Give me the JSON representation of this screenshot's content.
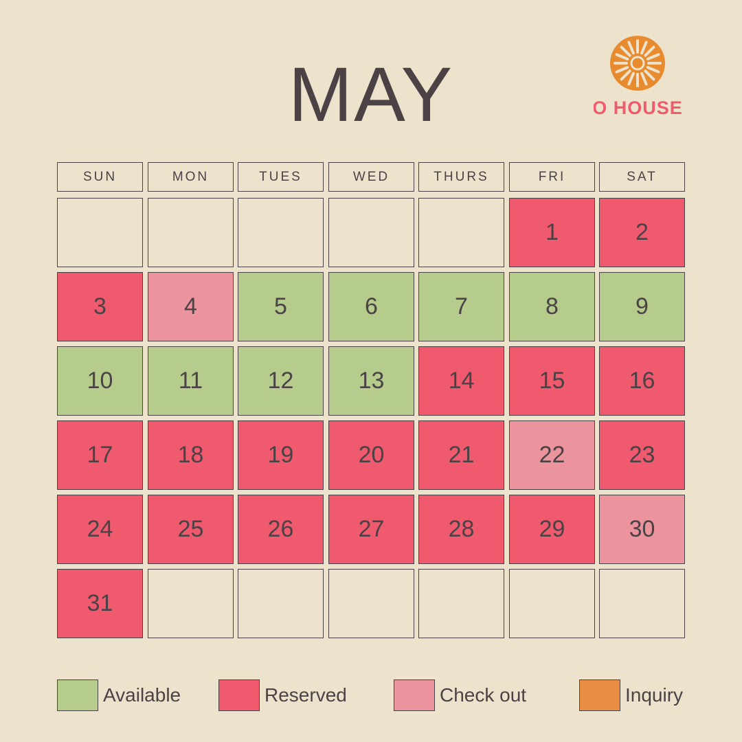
{
  "month": "MAY",
  "brand": {
    "logo_text": "O HOUSE",
    "colors": {
      "sun": "#e88a2e",
      "text": "#ef5a6e"
    }
  },
  "weekdays": [
    "SUN",
    "MON",
    "TUES",
    "WED",
    "THURS",
    "FRI",
    "SAT"
  ],
  "statuses": {
    "available": "#b6cc8d",
    "reserved": "#ef5a6e",
    "checkout": "#ec949d",
    "inquiry": "#e88e44",
    "empty": "#ede3cc"
  },
  "weeks": [
    [
      {
        "day": "",
        "status": "empty"
      },
      {
        "day": "",
        "status": "empty"
      },
      {
        "day": "",
        "status": "empty"
      },
      {
        "day": "",
        "status": "empty"
      },
      {
        "day": "",
        "status": "empty"
      },
      {
        "day": "1",
        "status": "reserved"
      },
      {
        "day": "2",
        "status": "reserved"
      }
    ],
    [
      {
        "day": "3",
        "status": "reserved"
      },
      {
        "day": "4",
        "status": "checkout"
      },
      {
        "day": "5",
        "status": "available"
      },
      {
        "day": "6",
        "status": "available"
      },
      {
        "day": "7",
        "status": "available"
      },
      {
        "day": "8",
        "status": "available"
      },
      {
        "day": "9",
        "status": "available"
      }
    ],
    [
      {
        "day": "10",
        "status": "available"
      },
      {
        "day": "11",
        "status": "available"
      },
      {
        "day": "12",
        "status": "available"
      },
      {
        "day": "13",
        "status": "available"
      },
      {
        "day": "14",
        "status": "reserved"
      },
      {
        "day": "15",
        "status": "reserved"
      },
      {
        "day": "16",
        "status": "reserved"
      }
    ],
    [
      {
        "day": "17",
        "status": "reserved"
      },
      {
        "day": "18",
        "status": "reserved"
      },
      {
        "day": "19",
        "status": "reserved"
      },
      {
        "day": "20",
        "status": "reserved"
      },
      {
        "day": "21",
        "status": "reserved"
      },
      {
        "day": "22",
        "status": "checkout"
      },
      {
        "day": "23",
        "status": "reserved"
      }
    ],
    [
      {
        "day": "24",
        "status": "reserved"
      },
      {
        "day": "25",
        "status": "reserved"
      },
      {
        "day": "26",
        "status": "reserved"
      },
      {
        "day": "27",
        "status": "reserved"
      },
      {
        "day": "28",
        "status": "reserved"
      },
      {
        "day": "29",
        "status": "reserved"
      },
      {
        "day": "30",
        "status": "checkout"
      }
    ],
    [
      {
        "day": "31",
        "status": "reserved"
      },
      {
        "day": "",
        "status": "empty"
      },
      {
        "day": "",
        "status": "empty"
      },
      {
        "day": "",
        "status": "empty"
      },
      {
        "day": "",
        "status": "empty"
      },
      {
        "day": "",
        "status": "empty"
      },
      {
        "day": "",
        "status": "empty"
      }
    ]
  ],
  "legend": [
    {
      "label": "Available",
      "status": "available"
    },
    {
      "label": "Reserved",
      "status": "reserved"
    },
    {
      "label": "Check out",
      "status": "checkout"
    },
    {
      "label": "Inquiry",
      "status": "inquiry"
    }
  ]
}
